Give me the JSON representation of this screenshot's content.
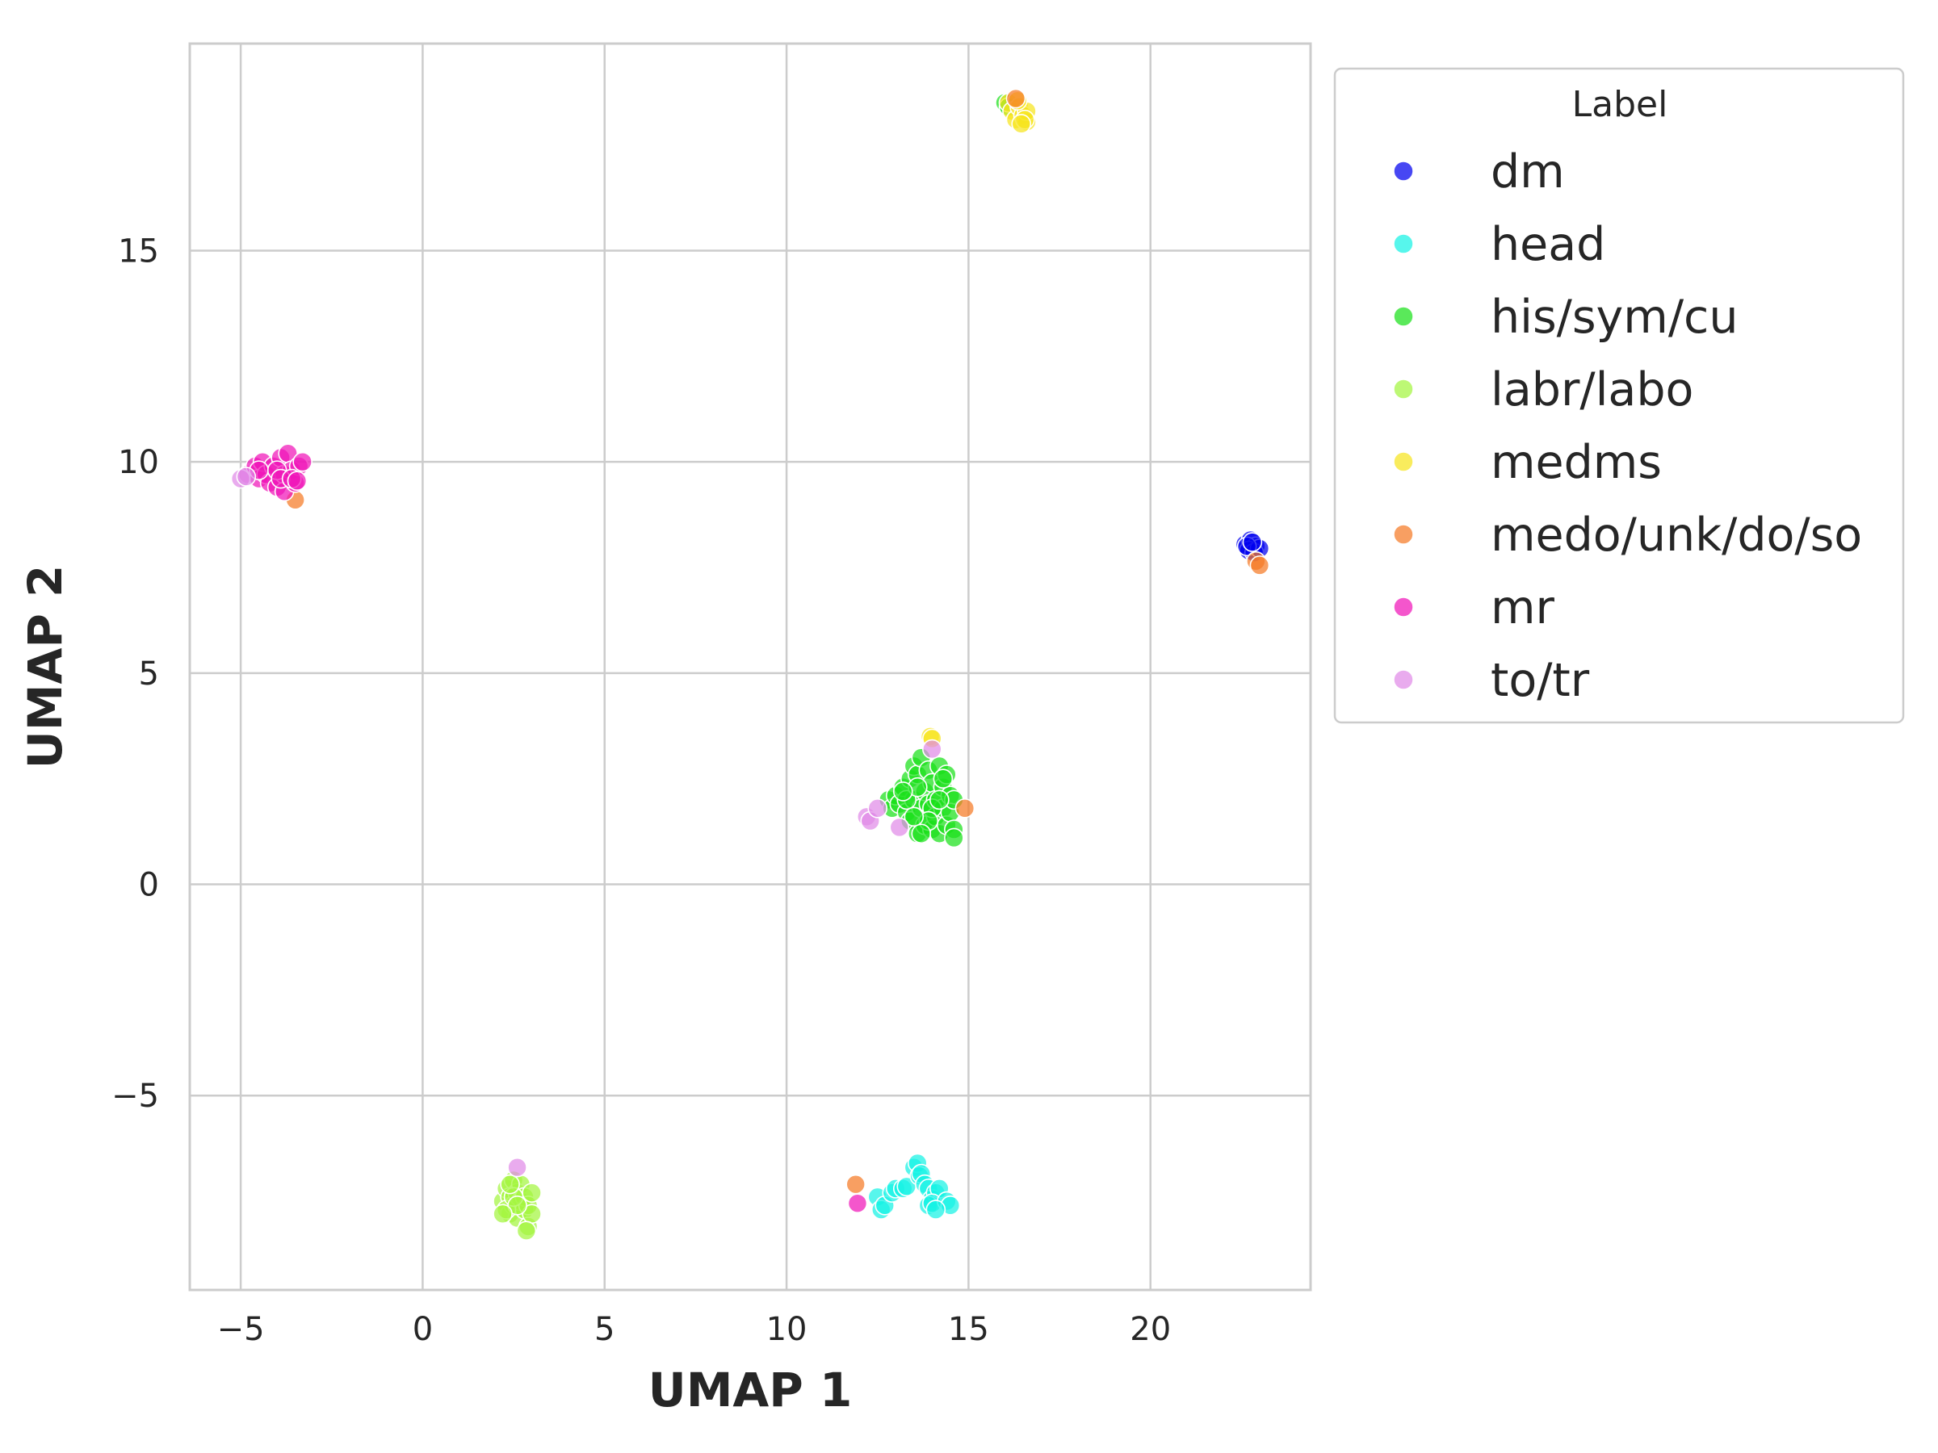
{
  "chart_data": {
    "type": "scatter",
    "title": "",
    "xlabel": "UMAP 1",
    "ylabel": "UMAP 2",
    "xlim": [
      -6.4,
      24.4
    ],
    "ylim": [
      -9.6,
      19.9
    ],
    "xticks": [
      -5,
      0,
      5,
      10,
      15,
      20
    ],
    "yticks": [
      -5,
      0,
      5,
      10,
      15
    ],
    "xtick_labels": [
      "−5",
      "0",
      "5",
      "10",
      "15",
      "20"
    ],
    "ytick_labels": [
      "−5",
      "0",
      "5",
      "10",
      "15"
    ],
    "grid": true,
    "legend": {
      "title": "Label",
      "placement": "outside right"
    },
    "series": [
      {
        "name": "dm",
        "color": "#0000ee",
        "points": [
          [
            22.6,
            8.05
          ],
          [
            22.75,
            8.15
          ],
          [
            22.9,
            8.0
          ],
          [
            22.7,
            7.9
          ],
          [
            22.85,
            7.85
          ],
          [
            23.0,
            7.95
          ],
          [
            22.65,
            8.0
          ],
          [
            22.8,
            8.1
          ]
        ]
      },
      {
        "name": "head",
        "color": "#16f2e4",
        "points": [
          [
            12.5,
            -7.4
          ],
          [
            12.6,
            -7.7
          ],
          [
            12.7,
            -7.6
          ],
          [
            12.9,
            -7.3
          ],
          [
            13.0,
            -7.2
          ],
          [
            13.2,
            -7.2
          ],
          [
            13.3,
            -7.15
          ],
          [
            13.5,
            -6.7
          ],
          [
            13.6,
            -6.6
          ],
          [
            13.65,
            -6.9
          ],
          [
            13.7,
            -6.85
          ],
          [
            13.8,
            -7.1
          ],
          [
            13.9,
            -7.2
          ],
          [
            14.0,
            -7.45
          ],
          [
            14.1,
            -7.3
          ],
          [
            14.2,
            -7.2
          ],
          [
            13.9,
            -7.6
          ],
          [
            14.0,
            -7.55
          ],
          [
            14.4,
            -7.5
          ],
          [
            14.5,
            -7.6
          ],
          [
            14.1,
            -7.7
          ]
        ]
      },
      {
        "name": "his/sym/cu",
        "color": "#1be01b",
        "points": [
          [
            12.8,
            2.0
          ],
          [
            12.9,
            1.8
          ],
          [
            13.0,
            2.1
          ],
          [
            13.1,
            1.9
          ],
          [
            13.2,
            2.3
          ],
          [
            13.3,
            1.7
          ],
          [
            13.4,
            2.5
          ],
          [
            13.4,
            1.5
          ],
          [
            13.5,
            2.8
          ],
          [
            13.5,
            2.0
          ],
          [
            13.6,
            1.2
          ],
          [
            13.6,
            2.6
          ],
          [
            13.7,
            1.8
          ],
          [
            13.7,
            3.0
          ],
          [
            13.8,
            2.2
          ],
          [
            13.8,
            1.4
          ],
          [
            13.9,
            2.7
          ],
          [
            13.9,
            1.9
          ],
          [
            14.0,
            2.4
          ],
          [
            14.0,
            1.3
          ],
          [
            14.1,
            2.0
          ],
          [
            14.1,
            1.6
          ],
          [
            14.2,
            2.8
          ],
          [
            14.2,
            1.2
          ],
          [
            14.3,
            2.3
          ],
          [
            14.3,
            1.8
          ],
          [
            14.4,
            2.6
          ],
          [
            14.4,
            1.4
          ],
          [
            14.5,
            2.1
          ],
          [
            14.5,
            1.7
          ],
          [
            14.6,
            1.3
          ],
          [
            14.6,
            2.0
          ],
          [
            13.3,
            2.0
          ],
          [
            13.6,
            2.3
          ],
          [
            14.0,
            1.8
          ],
          [
            14.2,
            2.0
          ],
          [
            13.9,
            1.5
          ],
          [
            13.5,
            1.6
          ],
          [
            14.3,
            2.5
          ],
          [
            14.6,
            1.1
          ],
          [
            13.7,
            1.2
          ],
          [
            13.2,
            2.2
          ],
          [
            16.0,
            18.5
          ],
          [
            16.1,
            18.4
          ]
        ]
      },
      {
        "name": "labr/labo",
        "color": "#a3f540",
        "points": [
          [
            2.2,
            -7.5
          ],
          [
            2.3,
            -7.2
          ],
          [
            2.4,
            -7.8
          ],
          [
            2.4,
            -7.4
          ],
          [
            2.5,
            -7.0
          ],
          [
            2.5,
            -7.6
          ],
          [
            2.6,
            -7.3
          ],
          [
            2.6,
            -7.9
          ],
          [
            2.7,
            -7.5
          ],
          [
            2.7,
            -7.1
          ],
          [
            2.8,
            -7.7
          ],
          [
            2.8,
            -7.4
          ],
          [
            2.9,
            -8.1
          ],
          [
            2.9,
            -7.6
          ],
          [
            3.0,
            -7.3
          ],
          [
            3.0,
            -7.8
          ],
          [
            2.3,
            -7.7
          ],
          [
            2.5,
            -7.4
          ],
          [
            2.85,
            -8.2
          ],
          [
            2.6,
            -7.6
          ],
          [
            2.2,
            -7.8
          ],
          [
            2.4,
            -7.1
          ]
        ]
      },
      {
        "name": "medms",
        "color": "#f7e51e",
        "points": [
          [
            16.1,
            18.5
          ],
          [
            16.2,
            18.3
          ],
          [
            16.3,
            18.1
          ],
          [
            16.4,
            18.4
          ],
          [
            16.5,
            18.2
          ],
          [
            16.6,
            18.05
          ],
          [
            16.6,
            18.3
          ],
          [
            16.35,
            18.55
          ],
          [
            16.55,
            18.1
          ],
          [
            16.45,
            18.0
          ],
          [
            13.95,
            3.5
          ],
          [
            14.0,
            3.45
          ]
        ]
      },
      {
        "name": "medo/unk/do/so",
        "color": "#f57a25",
        "points": [
          [
            16.3,
            18.6
          ],
          [
            22.9,
            7.65
          ],
          [
            23.0,
            7.55
          ],
          [
            14.9,
            1.8
          ],
          [
            11.9,
            -7.1
          ],
          [
            -3.5,
            9.1
          ]
        ]
      },
      {
        "name": "mr",
        "color": "#f015b8",
        "points": [
          [
            -4.8,
            9.7
          ],
          [
            -4.6,
            9.9
          ],
          [
            -4.5,
            9.6
          ],
          [
            -4.4,
            10.0
          ],
          [
            -4.3,
            9.7
          ],
          [
            -4.2,
            9.5
          ],
          [
            -4.1,
            9.9
          ],
          [
            -4.0,
            9.4
          ],
          [
            -3.9,
            10.1
          ],
          [
            -3.8,
            9.7
          ],
          [
            -3.8,
            9.3
          ],
          [
            -3.7,
            10.2
          ],
          [
            -3.6,
            9.8
          ],
          [
            -3.5,
            9.5
          ],
          [
            -3.4,
            9.9
          ],
          [
            -3.3,
            10.0
          ],
          [
            -4.5,
            9.8
          ],
          [
            -4.0,
            9.8
          ],
          [
            -3.9,
            9.6
          ],
          [
            -3.6,
            9.6
          ],
          [
            -3.45,
            9.55
          ],
          [
            11.95,
            -7.55
          ]
        ]
      },
      {
        "name": "to/tr",
        "color": "#e08ae8",
        "points": [
          [
            -5.0,
            9.6
          ],
          [
            -4.85,
            9.65
          ],
          [
            2.6,
            -6.7
          ],
          [
            12.2,
            1.6
          ],
          [
            12.3,
            1.5
          ],
          [
            12.5,
            1.8
          ],
          [
            13.1,
            1.35
          ],
          [
            14.0,
            3.2
          ]
        ]
      }
    ]
  }
}
